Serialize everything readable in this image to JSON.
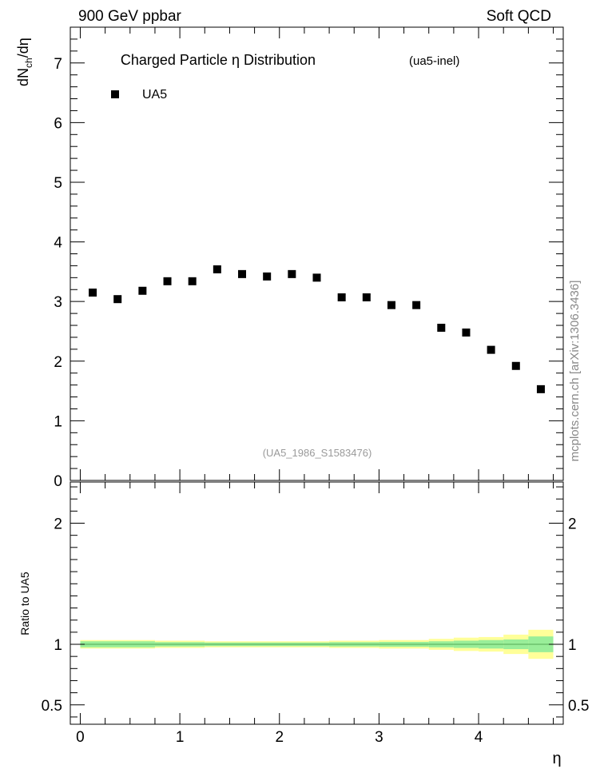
{
  "header": {
    "left": "900 GeV ppbar",
    "right": "Soft QCD"
  },
  "side_note": "mcplots.cern.ch [arXiv:1306.3436]",
  "analysis_ref": "(UA5_1986_S1583476)",
  "chart_data": [
    {
      "type": "scatter",
      "title": "Charged Particle  η Distribution",
      "subtitle": "(ua5-inel)",
      "ylabel": "dN_ch/dη",
      "ylim": [
        0,
        7.6
      ],
      "y_ticks": [
        "0",
        "1",
        "2",
        "3",
        "4",
        "5",
        "6",
        "7"
      ],
      "legend": {
        "placement": "top-left",
        "entries": [
          "UA5"
        ]
      },
      "series": [
        {
          "name": "UA5",
          "marker": "square",
          "color": "#000000",
          "x": [
            0.125,
            0.375,
            0.625,
            0.875,
            1.125,
            1.375,
            1.625,
            1.875,
            2.125,
            2.375,
            2.625,
            2.875,
            3.125,
            3.375,
            3.625,
            3.875,
            4.125,
            4.375,
            4.625
          ],
          "y": [
            3.15,
            3.04,
            3.18,
            3.34,
            3.34,
            3.54,
            3.46,
            3.42,
            3.46,
            3.4,
            3.07,
            3.07,
            2.94,
            2.94,
            2.56,
            2.48,
            2.19,
            1.92,
            1.53
          ]
        }
      ]
    },
    {
      "type": "band",
      "ylabel": "Ratio to UA5",
      "xlabel": "η",
      "xlim": [
        -0.1,
        4.85
      ],
      "ylim": [
        0.34,
        2.34
      ],
      "x_ticks": [
        "0",
        "1",
        "2",
        "3",
        "4"
      ],
      "y_ticks": [
        "0.5",
        "1",
        "2"
      ],
      "reference_line": 1.0,
      "bins": [
        {
          "x0": 0.0,
          "x1": 0.75,
          "inner": 0.025,
          "outer": 0.035
        },
        {
          "x0": 0.75,
          "x1": 1.25,
          "inner": 0.018,
          "outer": 0.03
        },
        {
          "x0": 1.25,
          "x1": 2.5,
          "inner": 0.015,
          "outer": 0.025
        },
        {
          "x0": 2.5,
          "x1": 3.0,
          "inner": 0.018,
          "outer": 0.03
        },
        {
          "x0": 3.0,
          "x1": 3.5,
          "inner": 0.02,
          "outer": 0.035
        },
        {
          "x0": 3.5,
          "x1": 3.75,
          "inner": 0.025,
          "outer": 0.045
        },
        {
          "x0": 3.75,
          "x1": 4.0,
          "inner": 0.03,
          "outer": 0.055
        },
        {
          "x0": 4.0,
          "x1": 4.25,
          "inner": 0.035,
          "outer": 0.06
        },
        {
          "x0": 4.25,
          "x1": 4.5,
          "inner": 0.04,
          "outer": 0.08
        },
        {
          "x0": 4.5,
          "x1": 4.75,
          "inner": 0.065,
          "outer": 0.12
        }
      ],
      "colors": {
        "inner": "#99ee99",
        "outer": "#ffff99"
      }
    }
  ]
}
